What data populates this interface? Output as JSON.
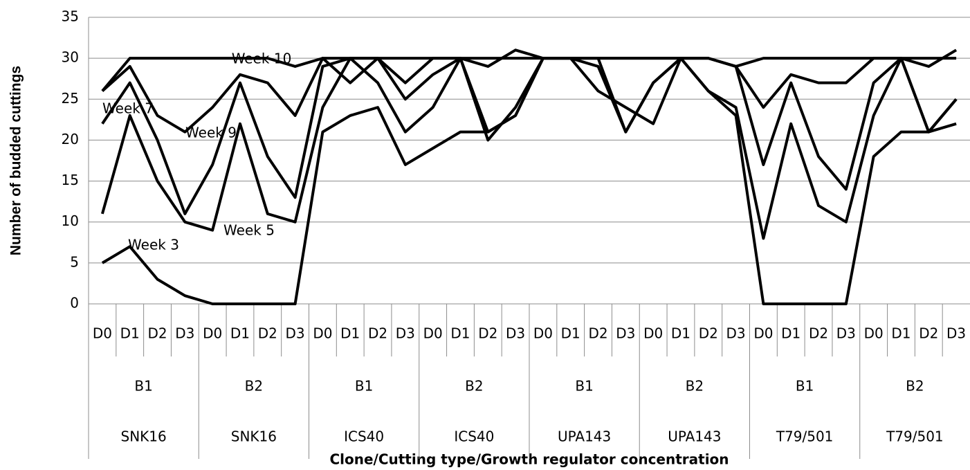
{
  "chart_data": {
    "type": "line",
    "y_label": "Number of budded cuttings",
    "x_label": "Clone/Cutting type/Growth regulator concentration",
    "categories": [
      "D0",
      "D1",
      "D2",
      "D3",
      "D0",
      "D1",
      "D2",
      "D3",
      "D0",
      "D1",
      "D2",
      "D3",
      "D0",
      "D1",
      "D2",
      "D3",
      "D0",
      "D1",
      "D2",
      "D3",
      "D0",
      "D1",
      "D2",
      "D3",
      "D0",
      "D1",
      "D2",
      "D3",
      "D0",
      "D1",
      "D2",
      "D3"
    ],
    "cutting_types": [
      "B1",
      "B2",
      "B1",
      "B2",
      "B1",
      "B2",
      "B1",
      "B2"
    ],
    "clones": [
      "SNK16",
      "SNK16",
      "ICS40",
      "ICS40",
      "UPA143",
      "UPA143",
      "T79/501",
      "T79/501"
    ],
    "ylim": [
      0,
      35
    ],
    "yticks": [
      0,
      5,
      10,
      15,
      20,
      25,
      30,
      35
    ],
    "grid": true,
    "series": [
      {
        "name": "Week 3",
        "color": "#000000",
        "values": [
          5,
          7,
          3,
          1,
          0,
          0,
          0,
          0,
          21,
          23,
          24,
          17,
          19,
          21,
          21,
          23,
          30,
          30,
          30,
          21,
          27,
          30,
          26,
          23,
          0,
          0,
          0,
          0,
          18,
          21,
          21,
          22
        ]
      },
      {
        "name": "Week 5",
        "color": "#000000",
        "values": [
          11,
          23,
          15,
          10,
          9,
          22,
          11,
          10,
          24,
          30,
          27,
          21,
          24,
          30,
          20,
          24,
          30,
          30,
          26,
          24,
          22,
          30,
          26,
          24,
          8,
          22,
          12,
          10,
          23,
          30,
          21,
          25
        ]
      },
      {
        "name": "Week 7",
        "color": "#000000",
        "values": [
          22,
          27,
          20,
          11,
          17,
          27,
          18,
          13,
          29,
          30,
          30,
          25,
          28,
          30,
          21,
          23,
          30,
          30,
          29,
          21,
          27,
          30,
          30,
          29,
          17,
          27,
          18,
          14,
          27,
          30,
          21,
          25
        ]
      },
      {
        "name": "Week 9",
        "color": "#000000",
        "values": [
          26,
          29,
          23,
          21,
          24,
          28,
          27,
          23,
          30,
          27,
          30,
          27,
          30,
          30,
          29,
          31,
          30,
          30,
          30,
          30,
          30,
          30,
          30,
          29,
          24,
          28,
          27,
          27,
          30,
          30,
          29,
          31
        ]
      },
      {
        "name": "Week 10",
        "color": "#000000",
        "values": [
          26,
          30,
          30,
          30,
          30,
          30,
          30,
          29,
          30,
          30,
          30,
          30,
          30,
          30,
          30,
          30,
          30,
          30,
          30,
          30,
          30,
          30,
          30,
          29,
          30,
          30,
          30,
          30,
          30,
          30,
          30,
          30
        ]
      }
    ]
  }
}
